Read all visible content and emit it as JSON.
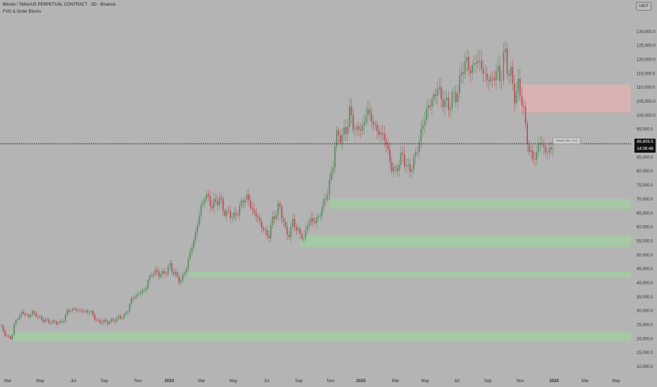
{
  "header": {
    "symbol_title": "Bitcoin / TetherUS PERPETUAL CONTRACT · 3D · Binance",
    "indicator_name": "FVG & Order Blocks"
  },
  "currency_button": "USDT",
  "current_price": {
    "value": "89,809.5",
    "countdown": "14:08:48"
  },
  "level_label": "Whale Obs: +4.2",
  "colors": {
    "background": "#b4b4b4",
    "bull_candle": "#5e8e63",
    "bear_candle": "#b8525a",
    "demand_zone": "#a6c9a5",
    "supply_zone": "#d9b2b2"
  },
  "chart_data": {
    "type": "candlestick",
    "y_axis": {
      "min": 10000,
      "max": 135000,
      "ticks": [
        "10,000.0",
        "15,000.0",
        "20,000.0",
        "25,000.0",
        "30,000.0",
        "35,000.0",
        "40,000.0",
        "45,000.0",
        "50,000.0",
        "55,000.0",
        "60,000.0",
        "65,000.0",
        "70,000.0",
        "75,000.0",
        "80,000.0",
        "85,000.0",
        "90,000.0",
        "95,000.0",
        "100,000.0",
        "105,000.0",
        "110,000.0",
        "115,000.0",
        "120,000.0",
        "125,000.0",
        "130,000.0"
      ]
    },
    "x_axis": {
      "labels": [
        "Mar",
        "May",
        "Jul",
        "Sep",
        "Nov",
        "2024",
        "Mar",
        "May",
        "Jul",
        "Sep",
        "Nov",
        "2025",
        "Mar",
        "May",
        "Jul",
        "Sep",
        "Nov",
        "2026",
        "Mar",
        "May"
      ]
    },
    "last_price": 89809.5,
    "zones": [
      {
        "type": "supply",
        "low": 107000,
        "high": 111000
      },
      {
        "type": "supply",
        "low": 101000,
        "high": 107000
      },
      {
        "type": "demand",
        "low": 66500,
        "high": 70000
      },
      {
        "type": "demand",
        "low": 52800,
        "high": 57000
      },
      {
        "type": "demand",
        "low": 42000,
        "high": 44000
      },
      {
        "type": "demand",
        "low": 19200,
        "high": 22300
      }
    ],
    "price_path": [
      [
        0,
        24500
      ],
      [
        5,
        22000
      ],
      [
        10,
        20500
      ],
      [
        15,
        19800
      ],
      [
        20,
        26000
      ],
      [
        25,
        27500
      ],
      [
        30,
        29500
      ],
      [
        35,
        28500
      ],
      [
        40,
        28000
      ],
      [
        45,
        29500
      ],
      [
        50,
        28500
      ],
      [
        55,
        27300
      ],
      [
        60,
        26800
      ],
      [
        65,
        26400
      ],
      [
        70,
        26000
      ],
      [
        75,
        25800
      ],
      [
        80,
        26000
      ],
      [
        85,
        25500
      ],
      [
        90,
        27000
      ],
      [
        95,
        30000
      ],
      [
        100,
        30300
      ],
      [
        105,
        30500
      ],
      [
        110,
        30000
      ],
      [
        115,
        29900
      ],
      [
        120,
        29800
      ],
      [
        125,
        29600
      ],
      [
        130,
        29300
      ],
      [
        135,
        26500
      ],
      [
        140,
        26000
      ],
      [
        145,
        26200
      ],
      [
        150,
        26000
      ],
      [
        155,
        26200
      ],
      [
        160,
        26500
      ],
      [
        165,
        27200
      ],
      [
        170,
        27700
      ],
      [
        175,
        28000
      ],
      [
        180,
        30000
      ],
      [
        185,
        34000
      ],
      [
        190,
        35000
      ],
      [
        195,
        35800
      ],
      [
        200,
        37000
      ],
      [
        205,
        37600
      ],
      [
        210,
        41500
      ],
      [
        215,
        43500
      ],
      [
        220,
        43800
      ],
      [
        225,
        43300
      ],
      [
        230,
        43000
      ],
      [
        235,
        44500
      ],
      [
        240,
        46000
      ],
      [
        245,
        44000
      ],
      [
        250,
        42000
      ],
      [
        255,
        40500
      ],
      [
        260,
        43000
      ],
      [
        265,
        47000
      ],
      [
        270,
        52000
      ],
      [
        275,
        56000
      ],
      [
        280,
        62000
      ],
      [
        285,
        68000
      ],
      [
        290,
        71000
      ],
      [
        295,
        70500
      ],
      [
        300,
        67000
      ],
      [
        305,
        69500
      ],
      [
        310,
        69800
      ],
      [
        315,
        67500
      ],
      [
        320,
        64000
      ],
      [
        325,
        65500
      ],
      [
        330,
        63000
      ],
      [
        335,
        65000
      ],
      [
        340,
        67500
      ],
      [
        345,
        70000
      ],
      [
        350,
        71000
      ],
      [
        355,
        67000
      ],
      [
        360,
        65000
      ],
      [
        365,
        63000
      ],
      [
        370,
        60500
      ],
      [
        375,
        58000
      ],
      [
        380,
        56500
      ],
      [
        385,
        62000
      ],
      [
        390,
        65000
      ],
      [
        395,
        67500
      ],
      [
        400,
        64000
      ],
      [
        405,
        57000
      ],
      [
        410,
        58000
      ],
      [
        415,
        62000
      ],
      [
        420,
        59500
      ],
      [
        425,
        57000
      ],
      [
        430,
        56000
      ],
      [
        435,
        60500
      ],
      [
        440,
        63000
      ],
      [
        445,
        61500
      ],
      [
        450,
        63500
      ],
      [
        455,
        66000
      ],
      [
        460,
        70000
      ],
      [
        465,
        73500
      ],
      [
        470,
        80000
      ],
      [
        475,
        91000
      ],
      [
        480,
        93500
      ],
      [
        485,
        92000
      ],
      [
        490,
        95000
      ],
      [
        495,
        101000
      ],
      [
        500,
        97000
      ],
      [
        505,
        94000
      ],
      [
        510,
        96000
      ],
      [
        515,
        95500
      ],
      [
        520,
        103000
      ],
      [
        525,
        99000
      ],
      [
        530,
        96000
      ],
      [
        535,
        95000
      ],
      [
        540,
        92000
      ],
      [
        545,
        93000
      ],
      [
        550,
        85000
      ],
      [
        555,
        82000
      ],
      [
        560,
        79000
      ],
      [
        565,
        84000
      ],
      [
        570,
        85000
      ],
      [
        575,
        83000
      ],
      [
        580,
        79000
      ],
      [
        585,
        84000
      ],
      [
        590,
        86000
      ],
      [
        595,
        93000
      ],
      [
        600,
        97000
      ],
      [
        605,
        103000
      ],
      [
        610,
        104000
      ],
      [
        615,
        107000
      ],
      [
        620,
        110000
      ],
      [
        625,
        106000
      ],
      [
        630,
        104500
      ],
      [
        635,
        103500
      ],
      [
        640,
        105500
      ],
      [
        645,
        107500
      ],
      [
        650,
        109000
      ],
      [
        655,
        118000
      ],
      [
        660,
        118500
      ],
      [
        665,
        117500
      ],
      [
        670,
        116000
      ],
      [
        675,
        121000
      ],
      [
        680,
        118000
      ],
      [
        685,
        115500
      ],
      [
        690,
        113000
      ],
      [
        695,
        112500
      ],
      [
        700,
        114000
      ],
      [
        705,
        116000
      ],
      [
        710,
        112500
      ],
      [
        715,
        124000
      ],
      [
        720,
        115500
      ],
      [
        725,
        113500
      ],
      [
        730,
        106000
      ],
      [
        735,
        111000
      ],
      [
        740,
        105000
      ],
      [
        745,
        95000
      ],
      [
        750,
        87000
      ],
      [
        755,
        84500
      ],
      [
        760,
        86000
      ],
      [
        765,
        91000
      ],
      [
        770,
        88500
      ],
      [
        775,
        86500
      ],
      [
        780,
        88000
      ],
      [
        785,
        89810
      ]
    ]
  }
}
